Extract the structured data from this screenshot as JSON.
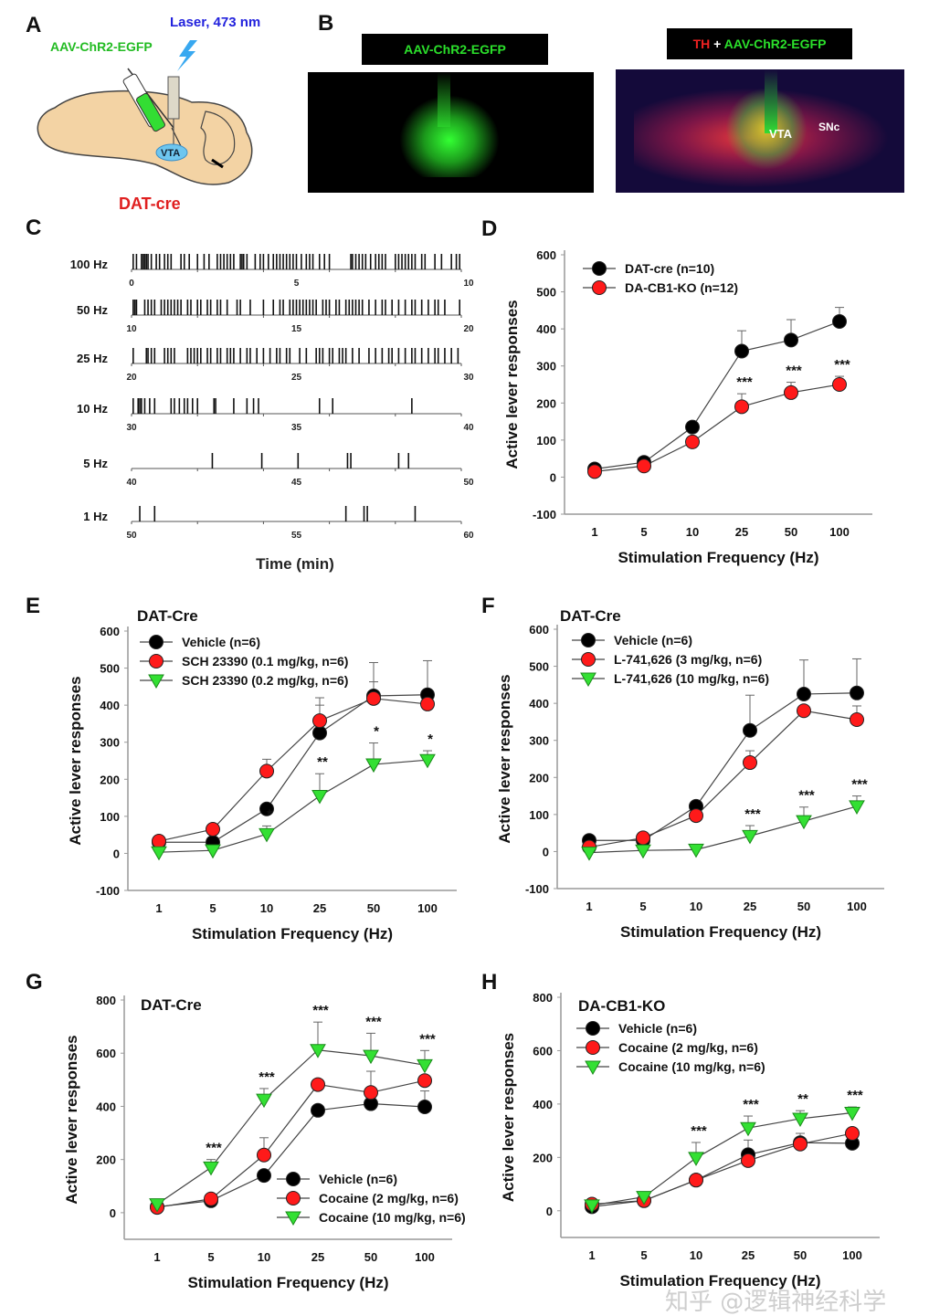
{
  "panel_a": {
    "letter": "A",
    "virus_label": "AAV-ChR2-EGFP",
    "laser_label": "Laser, 473 nm",
    "region_label": "VTA",
    "mouse_line": "DAT-cre",
    "icons": [
      "syringe-icon",
      "lightning-icon",
      "optic-fiber-icon",
      "brain-icon"
    ]
  },
  "panel_b": {
    "letter": "B",
    "left_caption": "AAV-ChR2-EGFP",
    "right_caption_red": "TH",
    "right_caption_plus": " + ",
    "right_caption_green": "AAV-ChR2-EGFP",
    "label_vta": "VTA",
    "label_snc": "SNc"
  },
  "panel_c": {
    "letter": "C",
    "xlabel": "Time (min)",
    "rows": [
      {
        "label": "100 Hz",
        "start": 0,
        "mid": 5,
        "end": 10,
        "events": [
          0.05,
          0.15,
          0.3,
          0.35,
          0.4,
          0.45,
          0.5,
          0.6,
          0.75,
          0.85,
          1.0,
          1.1,
          1.2,
          1.5,
          1.6,
          1.75,
          2.0,
          2.2,
          2.35,
          2.6,
          2.7,
          2.8,
          2.9,
          3.0,
          3.1,
          3.3,
          3.35,
          3.4,
          3.5,
          3.75,
          3.9,
          4.0,
          4.15,
          4.3,
          4.4,
          4.5,
          4.6,
          4.7,
          4.8,
          4.9,
          5.0,
          5.15,
          5.3,
          5.4,
          5.5,
          5.7,
          5.85,
          6.0,
          6.65,
          6.7,
          6.8,
          6.9,
          7.0,
          7.1,
          7.25,
          7.4,
          7.5,
          7.6,
          7.7,
          8.0,
          8.1,
          8.2,
          8.3,
          8.4,
          8.5,
          8.6,
          8.8,
          8.9,
          9.2,
          9.4,
          9.7,
          9.85,
          9.95
        ]
      },
      {
        "label": "50 Hz",
        "start": 10,
        "mid": 15,
        "end": 20,
        "events": [
          10.05,
          10.1,
          10.15,
          10.4,
          10.5,
          10.6,
          10.7,
          10.9,
          11.0,
          11.1,
          11.2,
          11.3,
          11.4,
          11.5,
          11.7,
          11.8,
          12.0,
          12.1,
          12.3,
          12.4,
          12.6,
          12.7,
          12.9,
          13.2,
          13.3,
          13.6,
          14.0,
          14.3,
          14.5,
          14.6,
          14.8,
          14.9,
          15.0,
          15.1,
          15.2,
          15.3,
          15.4,
          15.5,
          15.6,
          15.8,
          15.9,
          16.0,
          16.2,
          16.3,
          16.5,
          16.6,
          16.7,
          16.8,
          16.9,
          17.0,
          17.2,
          17.4,
          17.6,
          17.7,
          17.9,
          18.1,
          18.3,
          18.5,
          18.6,
          18.8,
          19.0,
          19.2,
          19.3,
          19.5,
          19.95
        ]
      },
      {
        "label": "25 Hz",
        "start": 20,
        "mid": 25,
        "end": 30,
        "events": [
          20.05,
          20.45,
          20.5,
          20.6,
          20.7,
          21.0,
          21.1,
          21.2,
          21.3,
          21.7,
          21.8,
          21.9,
          22.0,
          22.1,
          22.3,
          22.4,
          22.6,
          22.7,
          22.9,
          23.0,
          23.1,
          23.3,
          23.5,
          23.6,
          23.8,
          24.0,
          24.2,
          24.4,
          24.5,
          24.7,
          24.8,
          25.1,
          25.3,
          25.6,
          25.7,
          25.8,
          26.0,
          26.1,
          26.3,
          26.4,
          26.5,
          26.7,
          26.9,
          27.2,
          27.4,
          27.6,
          27.8,
          27.9,
          28.1,
          28.3,
          28.5,
          28.6,
          28.8,
          29.0,
          29.2,
          29.3,
          29.5,
          29.7,
          29.9
        ]
      },
      {
        "label": "10 Hz",
        "start": 30,
        "mid": 35,
        "end": 40,
        "events": [
          30.05,
          30.2,
          30.25,
          30.3,
          30.4,
          30.55,
          30.7,
          31.2,
          31.3,
          31.45,
          31.6,
          31.7,
          31.85,
          32.0,
          32.5,
          32.55,
          33.1,
          33.5,
          33.7,
          33.85,
          35.7,
          36.1,
          38.5
        ]
      },
      {
        "label": "5 Hz",
        "start": 40,
        "mid": 45,
        "end": 50,
        "events": [
          42.45,
          43.95,
          45.05,
          46.55,
          46.65,
          48.1,
          48.4
        ]
      },
      {
        "label": "1 Hz",
        "start": 50,
        "mid": 55,
        "end": 60,
        "events": [
          50.25,
          50.7,
          56.5,
          57.05,
          57.15,
          58.6
        ]
      }
    ]
  },
  "chart_data": [
    {
      "panel": "D",
      "type": "line",
      "title": "",
      "xlabel": "Stimulation Frequency (Hz)",
      "ylabel": "Active lever responses",
      "categories": [
        "1",
        "5",
        "10",
        "25",
        "50",
        "100"
      ],
      "ylim": [
        -100,
        600
      ],
      "yticks": [
        -100,
        0,
        100,
        200,
        300,
        400,
        500,
        600
      ],
      "legend_placement": "top-left",
      "series": [
        {
          "name": "DAT-cre (n=10)",
          "marker": "circle",
          "color": "#000000",
          "values": [
            22,
            40,
            135,
            340,
            370,
            420
          ],
          "error": [
            0,
            0,
            0,
            55,
            55,
            38
          ]
        },
        {
          "name": "DA-CB1-KO (n=12)",
          "marker": "circle",
          "color": "#ff1a1a",
          "values": [
            15,
            30,
            95,
            190,
            228,
            250
          ],
          "error": [
            0,
            0,
            0,
            35,
            28,
            22
          ]
        }
      ],
      "significance": [
        "",
        "",
        "",
        "***",
        "***",
        "***"
      ]
    },
    {
      "panel": "E",
      "type": "line",
      "title": "DAT-Cre",
      "xlabel": "Stimulation Frequency (Hz)",
      "ylabel": "Active lever responses",
      "categories": [
        "1",
        "5",
        "10",
        "25",
        "50",
        "100"
      ],
      "ylim": [
        -100,
        600
      ],
      "yticks": [
        -100,
        0,
        100,
        200,
        300,
        400,
        500,
        600
      ],
      "legend_placement": "top-left",
      "series": [
        {
          "name": "Vehicle (n=6)",
          "marker": "circle",
          "color": "#000000",
          "values": [
            30,
            30,
            120,
            325,
            425,
            428
          ],
          "error": [
            0,
            0,
            0,
            75,
            90,
            92
          ]
        },
        {
          "name": "SCH 23390 (0.1 mg/kg, n=6)",
          "marker": "circle",
          "color": "#ff1a1a",
          "values": [
            33,
            65,
            222,
            358,
            418,
            403
          ],
          "error": [
            0,
            0,
            32,
            62,
            45,
            0
          ]
        },
        {
          "name": "SCH 23390 (0.2 mg/kg, n=6)",
          "marker": "triangle-down",
          "color": "#33e033",
          "values": [
            3,
            8,
            52,
            155,
            240,
            252
          ],
          "error": [
            0,
            0,
            22,
            60,
            58,
            25
          ]
        }
      ],
      "significance": [
        "",
        "",
        "*",
        "**",
        "*",
        "*"
      ]
    },
    {
      "panel": "F",
      "type": "line",
      "title": "DAT-Cre",
      "xlabel": "Stimulation Frequency (Hz)",
      "ylabel": "Active lever responses",
      "categories": [
        "1",
        "5",
        "10",
        "25",
        "50",
        "100"
      ],
      "ylim": [
        -100,
        600
      ],
      "yticks": [
        -100,
        0,
        100,
        200,
        300,
        400,
        500,
        600
      ],
      "legend_placement": "top-left",
      "series": [
        {
          "name": "Vehicle (n=6)",
          "marker": "circle",
          "color": "#000000",
          "values": [
            30,
            30,
            122,
            327,
            425,
            428
          ],
          "error": [
            0,
            0,
            0,
            95,
            92,
            92
          ]
        },
        {
          "name": "L-741,626 (3 mg/kg, n=6)",
          "marker": "circle",
          "color": "#ff1a1a",
          "values": [
            12,
            37,
            97,
            240,
            380,
            356
          ],
          "error": [
            0,
            0,
            0,
            32,
            0,
            37
          ]
        },
        {
          "name": "L-741,626 (10 mg/kg, n=6)",
          "marker": "triangle-down",
          "color": "#33e033",
          "values": [
            -3,
            3,
            5,
            42,
            82,
            122
          ],
          "error": [
            0,
            0,
            0,
            28,
            38,
            28
          ]
        }
      ],
      "significance": [
        "",
        "",
        "",
        "***",
        "***",
        "***"
      ]
    },
    {
      "panel": "G",
      "type": "line",
      "title": "DAT-Cre",
      "xlabel": "Stimulation Frequency (Hz)",
      "ylabel": "Active lever responses",
      "categories": [
        "1",
        "5",
        "10",
        "25",
        "50",
        "100"
      ],
      "ylim": [
        -100,
        800
      ],
      "yticks": [
        0,
        200,
        400,
        600,
        800
      ],
      "legend_placement": "bottom-right",
      "series": [
        {
          "name": "Vehicle (n=6)",
          "marker": "circle",
          "color": "#000000",
          "values": [
            22,
            45,
            140,
            385,
            410,
            398
          ],
          "error": [
            0,
            0,
            0,
            0,
            0,
            60
          ]
        },
        {
          "name": "Cocaine (2 mg/kg, n=6)",
          "marker": "circle",
          "color": "#ff1a1a",
          "values": [
            20,
            52,
            217,
            482,
            452,
            497
          ],
          "error": [
            0,
            0,
            65,
            0,
            80,
            0
          ]
        },
        {
          "name": "Cocaine (10 mg/kg, n=6)",
          "marker": "triangle-down",
          "color": "#33e033",
          "values": [
            32,
            170,
            425,
            612,
            590,
            555
          ],
          "error": [
            0,
            30,
            42,
            105,
            85,
            55
          ]
        }
      ],
      "significance": [
        "",
        "***",
        "***",
        "***",
        "***",
        "***"
      ]
    },
    {
      "panel": "H",
      "type": "line",
      "title": "DA-CB1-KO",
      "xlabel": "Stimulation Frequency (Hz)",
      "ylabel": "Active lever responses",
      "categories": [
        "1",
        "5",
        "10",
        "25",
        "50",
        "100"
      ],
      "ylim": [
        -100,
        800
      ],
      "yticks": [
        0,
        200,
        400,
        600,
        800
      ],
      "legend_placement": "top-left",
      "series": [
        {
          "name": "Vehicle (n=6)",
          "marker": "circle",
          "color": "#000000",
          "values": [
            15,
            38,
            115,
            210,
            255,
            253
          ],
          "error": [
            0,
            0,
            0,
            55,
            35,
            0
          ]
        },
        {
          "name": "Cocaine (2 mg/kg, n=6)",
          "marker": "circle",
          "color": "#ff1a1a",
          "values": [
            25,
            38,
            115,
            188,
            250,
            290
          ],
          "error": [
            0,
            0,
            0,
            0,
            0,
            0
          ]
        },
        {
          "name": "Cocaine (10 mg/kg, n=6)",
          "marker": "triangle-down",
          "color": "#33e033",
          "values": [
            20,
            52,
            198,
            310,
            345,
            367
          ],
          "error": [
            0,
            0,
            58,
            45,
            30,
            22
          ]
        }
      ],
      "significance": [
        "",
        "",
        "***",
        "***",
        "**",
        "***"
      ]
    }
  ],
  "watermark": "知乎 @逻辑神经科学"
}
